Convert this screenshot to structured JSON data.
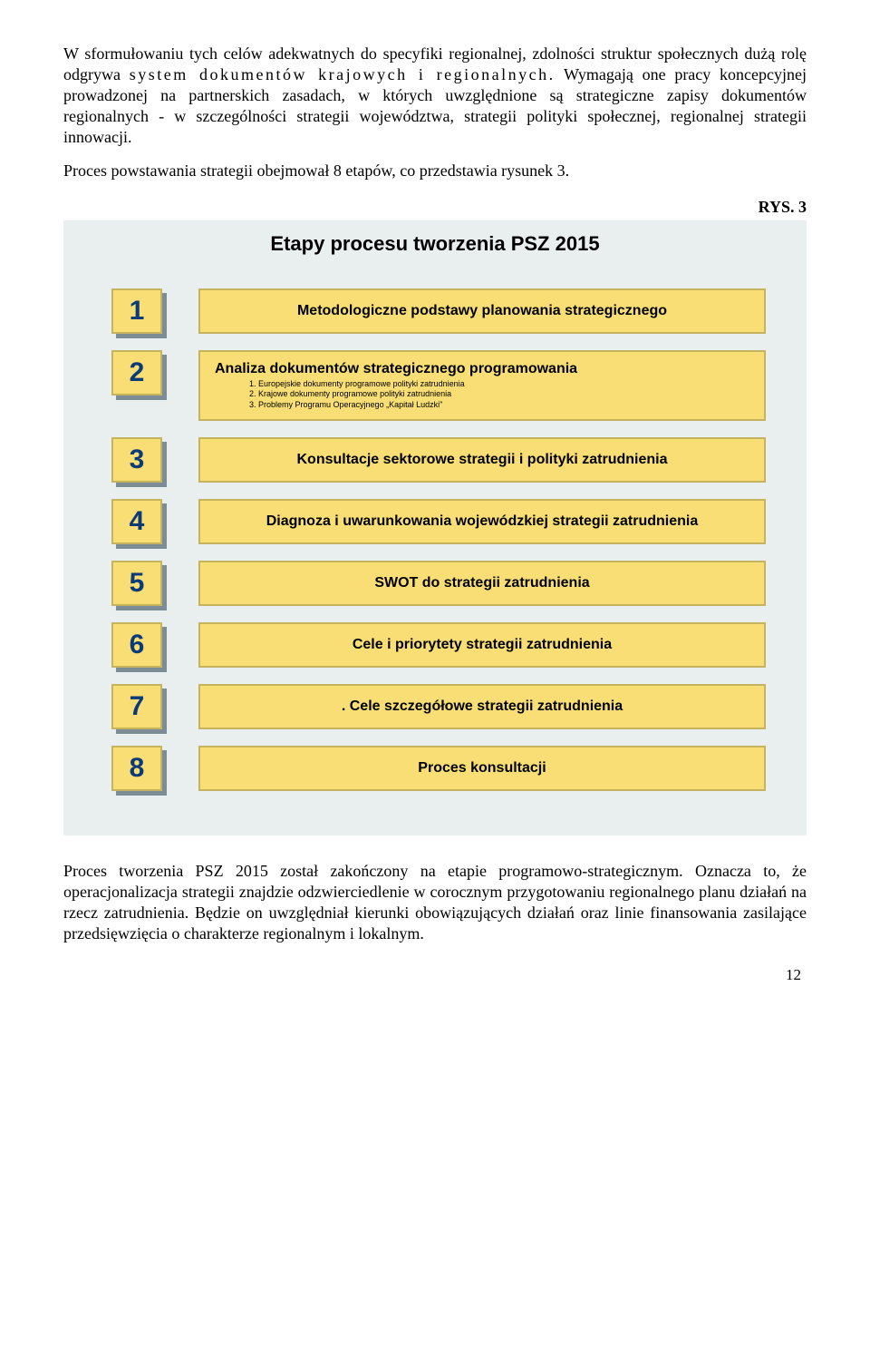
{
  "para1_pre": "W sformułowaniu tych celów adekwatnych do specyfiki regionalnej, zdolności struktur społecznych dużą rolę odgrywa ",
  "para1_spaced": "system dokumentów krajowych i regionalnych.",
  "para1_post": " Wymagają one pracy koncepcyjnej prowadzonej na partnerskich zasadach, w których uwzględnione są strategiczne zapisy dokumentów regionalnych - w szczególności strategii województwa, strategii polityki społecznej, regionalnej strategii innowacji.",
  "para2": "Proces powstawania strategii obejmował 8 etapów, co przedstawia rysunek 3.",
  "figlabel": "RYS. 3",
  "figtitle": "Etapy procesu tworzenia PSZ 2015",
  "steps": [
    {
      "n": "1",
      "main": "Metodologiczne podstawy planowania strategicznego",
      "sub": []
    },
    {
      "n": "2",
      "main": "Analiza dokumentów strategicznego programowania",
      "sub": [
        "1.        Europejskie dokumenty programowe  polityki zatrudnienia",
        "2.        Krajowe dokumenty programowe  polityki zatrudnienia",
        "3.        Problemy Programu Operacyjnego „Kapitał Ludzki”"
      ]
    },
    {
      "n": "3",
      "main": "Konsultacje sektorowe strategii i polityki zatrudnienia",
      "sub": []
    },
    {
      "n": "4",
      "main": "Diagnoza i uwarunkowania wojewódzkiej strategii zatrudnienia",
      "sub": []
    },
    {
      "n": "5",
      "main": "SWOT do strategii zatrudnienia",
      "sub": []
    },
    {
      "n": "6",
      "main": "Cele i priorytety strategii zatrudnienia",
      "sub": []
    },
    {
      "n": "7",
      "main": ". Cele szczegółowe strategii zatrudnienia",
      "sub": []
    },
    {
      "n": "8",
      "main": "Proces konsultacji",
      "sub": []
    }
  ],
  "para3": "Proces tworzenia PSZ 2015 został zakończony na etapie programowo-strategicznym. Oznacza to, że operacjonalizacja strategii znajdzie odzwierciedlenie w corocznym przygotowaniu regionalnego planu działań na rzecz zatrudnienia. Będzie on uwzględniał kierunki obowiązujących działań oraz linie finansowania zasilające przedsięwzięcia o charakterze regionalnym i lokalnym.",
  "pgnum": "12",
  "colors": {
    "box_fill": "#f8de74",
    "box_border": "#c7b25d",
    "shadow": "#7d8d96",
    "fig_bg": "#e9eeee",
    "num_text": "#0b3a78"
  }
}
